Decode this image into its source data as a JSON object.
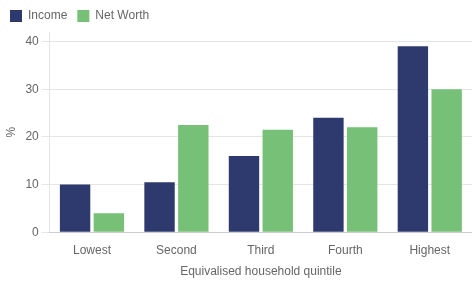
{
  "chart_data": {
    "type": "bar",
    "categories": [
      "Lowest",
      "Second",
      "Third",
      "Fourth",
      "Highest"
    ],
    "series": [
      {
        "name": "Income",
        "color": "#2E3A6E",
        "values": [
          10.0,
          10.5,
          16.0,
          24.0,
          39.0
        ]
      },
      {
        "name": "Net Worth",
        "color": "#77C077",
        "values": [
          4.0,
          22.5,
          21.5,
          22.0,
          30.0
        ]
      }
    ],
    "xlabel": "Equivalised household quintile",
    "ylabel": "%",
    "ylim": [
      0,
      42
    ],
    "yticks": [
      0,
      10,
      20,
      30,
      40
    ],
    "grid": "y",
    "legend": "upper left"
  }
}
